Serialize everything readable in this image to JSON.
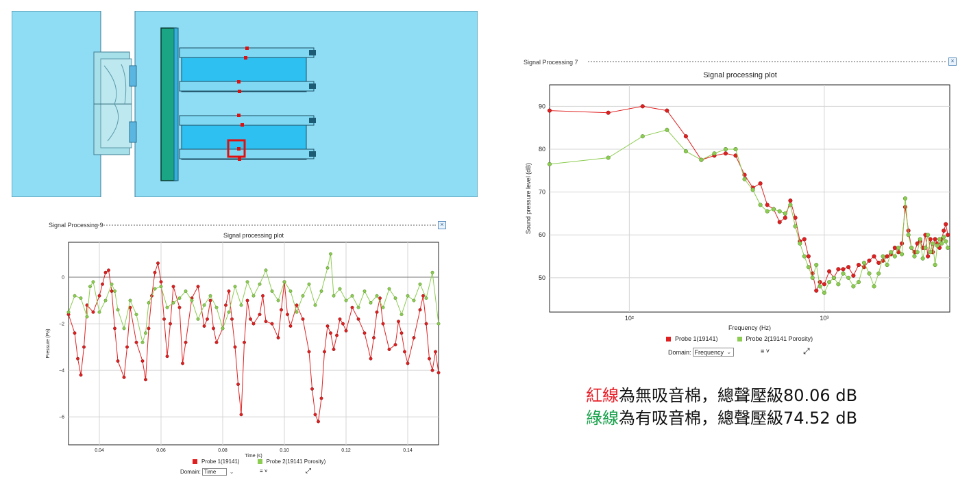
{
  "colors": {
    "red": "#e02020",
    "green": "#8ccc50",
    "caption_red": "#e8212a",
    "caption_green": "#17a04a"
  },
  "cad_view": {
    "description_icon": "cad-model-icon",
    "probe_points": 8
  },
  "time_panel": {
    "header": "Signal Processing 9",
    "close_label": "×",
    "title": "Signal processing plot",
    "xlabel": "Time (s)",
    "ylabel": "Pressure (Pa)",
    "legend": [
      "Probe  1(19141)",
      "Probe  2(19141  Porosity)"
    ],
    "domain_label": "Domain:",
    "domain_value": "Time",
    "menu_icon": "≡ ˅",
    "expand_icon": "⤢"
  },
  "freq_panel": {
    "header": "Signal Processing 7",
    "close_label": "×",
    "title": "Signal processing plot",
    "xlabel": "Frequency (Hz)",
    "ylabel": "Sound pressure level (dB)",
    "legend": [
      "Probe  1(19141)",
      "Probe  2(19141  Porosity)"
    ],
    "domain_label": "Domain:",
    "domain_value": "Frequency",
    "menu_icon": "≡ ˅",
    "expand_icon": "⤢"
  },
  "caption": {
    "line1_colored": "紅線",
    "line1_rest": "為無吸音棉，總聲壓級80.06 dB",
    "line2_colored": "綠線",
    "line2_rest": "為有吸音棉，總聲壓級74.52 dB"
  },
  "chart_data": [
    {
      "type": "line",
      "title": "Signal processing plot",
      "xlabel": "Time (s)",
      "ylabel": "Pressure (Pa)",
      "xlim": [
        0.03,
        0.15
      ],
      "ylim": [
        -7.2,
        1.5
      ],
      "xticks": [
        0.04,
        0.06,
        0.08,
        0.1,
        0.12,
        0.14
      ],
      "xtick_labels": [
        "0.04",
        "0.06",
        "0.08",
        "0.10",
        "0.12",
        "0.14"
      ],
      "yticks": [
        0,
        -2,
        -4,
        -6
      ],
      "ytick_labels": [
        "0",
        "−2",
        "−4",
        "−6"
      ],
      "series": [
        {
          "name": "Probe 1(19141)",
          "color": "#e02020",
          "x": [
            0.03,
            0.032,
            0.033,
            0.034,
            0.035,
            0.036,
            0.038,
            0.04,
            0.041,
            0.042,
            0.043,
            0.044,
            0.045,
            0.046,
            0.048,
            0.049,
            0.05,
            0.052,
            0.054,
            0.055,
            0.056,
            0.057,
            0.058,
            0.059,
            0.06,
            0.061,
            0.062,
            0.063,
            0.064,
            0.066,
            0.067,
            0.068,
            0.07,
            0.072,
            0.074,
            0.075,
            0.076,
            0.077,
            0.078,
            0.08,
            0.081,
            0.082,
            0.083,
            0.084,
            0.085,
            0.086,
            0.087,
            0.088,
            0.089,
            0.09,
            0.092,
            0.093,
            0.094,
            0.096,
            0.098,
            0.099,
            0.1,
            0.101,
            0.102,
            0.104,
            0.106,
            0.108,
            0.109,
            0.11,
            0.111,
            0.112,
            0.113,
            0.114,
            0.115,
            0.116,
            0.117,
            0.118,
            0.119,
            0.12,
            0.122,
            0.124,
            0.126,
            0.128,
            0.129,
            0.13,
            0.131,
            0.132,
            0.134,
            0.136,
            0.137,
            0.138,
            0.139,
            0.14,
            0.142,
            0.144,
            0.145,
            0.146,
            0.147,
            0.148,
            0.149,
            0.15
          ],
          "y": [
            -1.6,
            -2.4,
            -3.5,
            -4.2,
            -3.0,
            -1.2,
            -1.5,
            -0.8,
            -0.3,
            0.2,
            0.3,
            -0.6,
            -2.2,
            -3.6,
            -4.3,
            -3.0,
            -1.3,
            -2.8,
            -3.6,
            -4.4,
            -2.2,
            -0.8,
            0.2,
            0.6,
            -0.2,
            -1.8,
            -3.4,
            -2.0,
            -0.4,
            -1.3,
            -3.7,
            -2.8,
            -0.9,
            -0.4,
            -2.1,
            -1.8,
            -1.0,
            -2.2,
            -2.8,
            -2.2,
            -1.2,
            -0.6,
            -1.8,
            -3.0,
            -4.6,
            -5.9,
            -2.8,
            -1.0,
            -1.8,
            -2.0,
            -1.6,
            -0.8,
            -1.9,
            -2.0,
            -2.6,
            -1.4,
            -0.2,
            -1.6,
            -2.1,
            -1.2,
            -1.8,
            -3.2,
            -4.8,
            -5.9,
            -6.2,
            -5.2,
            -3.2,
            -2.1,
            -2.4,
            -3.1,
            -2.5,
            -1.8,
            -2.0,
            -2.3,
            -1.3,
            -1.8,
            -2.4,
            -3.5,
            -2.6,
            -1.5,
            -0.9,
            -2.0,
            -3.1,
            -2.9,
            -1.9,
            -2.4,
            -3.2,
            -3.7,
            -2.6,
            -1.4,
            -0.8,
            -2.0,
            -3.5,
            -4.0,
            -3.2,
            -4.1
          ]
        },
        {
          "name": "Probe 2(19141 Porosity)",
          "color": "#8ccc50",
          "x": [
            0.03,
            0.032,
            0.034,
            0.036,
            0.037,
            0.038,
            0.04,
            0.042,
            0.044,
            0.045,
            0.046,
            0.048,
            0.05,
            0.052,
            0.054,
            0.055,
            0.056,
            0.058,
            0.06,
            0.062,
            0.064,
            0.066,
            0.068,
            0.07,
            0.072,
            0.074,
            0.076,
            0.078,
            0.08,
            0.082,
            0.084,
            0.086,
            0.088,
            0.09,
            0.092,
            0.094,
            0.096,
            0.098,
            0.1,
            0.102,
            0.104,
            0.106,
            0.108,
            0.11,
            0.112,
            0.114,
            0.115,
            0.116,
            0.118,
            0.12,
            0.122,
            0.124,
            0.126,
            0.128,
            0.13,
            0.132,
            0.134,
            0.136,
            0.138,
            0.14,
            0.142,
            0.144,
            0.146,
            0.148,
            0.15
          ],
          "y": [
            -1.5,
            -0.8,
            -0.9,
            -1.7,
            -0.4,
            -0.2,
            -1.5,
            -1.0,
            -0.3,
            -0.6,
            -1.4,
            -2.2,
            -1.0,
            -1.6,
            -2.8,
            -2.4,
            -1.1,
            -0.5,
            -0.4,
            -1.3,
            -1.1,
            -0.9,
            -0.6,
            -1.0,
            -1.8,
            -1.2,
            -0.8,
            -1.3,
            -2.2,
            -1.5,
            -0.4,
            -1.2,
            -0.2,
            -0.8,
            -0.3,
            0.3,
            -0.6,
            -1.0,
            -0.2,
            -0.6,
            -1.5,
            -0.8,
            -0.3,
            -1.2,
            -0.6,
            0.4,
            1.0,
            -0.8,
            -0.5,
            -1.0,
            -0.8,
            -1.3,
            -0.6,
            -1.1,
            -0.8,
            -1.3,
            -0.5,
            -0.9,
            -1.6,
            -0.8,
            -1.0,
            -0.3,
            -0.9,
            0.2,
            -2.0
          ]
        }
      ]
    },
    {
      "type": "line",
      "title": "Signal processing plot",
      "xlabel": "Frequency (Hz)",
      "ylabel": "Sound pressure level (dB)",
      "xscale": "log",
      "xlim": [
        39,
        4400
      ],
      "ylim": [
        42,
        95
      ],
      "xticks": [
        100,
        1000
      ],
      "xtick_labels": [
        "10²",
        "10³"
      ],
      "yticks": [
        50,
        60,
        70,
        80,
        90
      ],
      "ytick_labels": [
        "50",
        "60",
        "70",
        "80",
        "90"
      ],
      "series": [
        {
          "name": "Probe 1(19141)",
          "color": "#e02020",
          "x": [
            39,
            78,
            117,
            156,
            195,
            234,
            273,
            312,
            351,
            390,
            430,
            470,
            510,
            550,
            590,
            630,
            670,
            710,
            750,
            790,
            830,
            870,
            910,
            950,
            1000,
            1060,
            1120,
            1180,
            1250,
            1330,
            1410,
            1500,
            1600,
            1700,
            1800,
            1900,
            2000,
            2100,
            2200,
            2300,
            2400,
            2500,
            2600,
            2700,
            2800,
            2900,
            3000,
            3100,
            3200,
            3300,
            3400,
            3500,
            3600,
            3700,
            3800,
            3900,
            4000,
            4100,
            4200,
            4300
          ],
          "y": [
            89,
            88.5,
            90,
            89,
            83,
            77.5,
            78.5,
            79,
            78.5,
            74,
            71,
            72,
            67,
            66,
            63,
            64,
            68,
            64,
            58.5,
            59,
            55,
            51,
            47,
            49,
            48.5,
            51.5,
            50,
            52,
            52,
            52.5,
            50.5,
            53,
            52.5,
            54,
            55,
            53.5,
            54,
            55,
            55.5,
            57,
            56,
            58,
            66.5,
            61,
            57,
            56,
            58,
            58.5,
            57,
            60,
            55,
            59,
            56,
            59,
            58,
            57,
            59,
            61,
            62.5,
            60
          ]
        },
        {
          "name": "Probe 2(19141 Porosity)",
          "color": "#8ccc50",
          "x": [
            39,
            78,
            117,
            156,
            195,
            234,
            273,
            312,
            351,
            390,
            430,
            470,
            510,
            550,
            590,
            630,
            670,
            710,
            750,
            790,
            830,
            870,
            910,
            950,
            1000,
            1060,
            1120,
            1180,
            1250,
            1330,
            1410,
            1500,
            1600,
            1700,
            1800,
            1900,
            2000,
            2100,
            2200,
            2300,
            2400,
            2500,
            2600,
            2700,
            2800,
            2900,
            3000,
            3100,
            3200,
            3300,
            3400,
            3500,
            3600,
            3700,
            3800,
            3900,
            4000,
            4100,
            4200,
            4300
          ],
          "y": [
            76.5,
            78,
            83,
            84.5,
            79.5,
            77.5,
            79,
            80,
            80,
            73,
            70.5,
            67,
            65.5,
            66,
            65.5,
            65,
            67,
            62,
            58,
            55,
            52.5,
            50,
            53,
            48,
            46.5,
            49,
            50,
            48.5,
            51,
            50,
            48,
            49,
            53.5,
            51,
            48,
            51,
            55,
            53,
            56,
            55,
            57,
            55.5,
            68.5,
            60,
            57,
            55,
            56,
            59,
            54.5,
            57,
            60,
            56,
            58,
            53,
            57.5,
            59,
            58,
            59.5,
            58.5,
            57
          ]
        }
      ]
    }
  ]
}
